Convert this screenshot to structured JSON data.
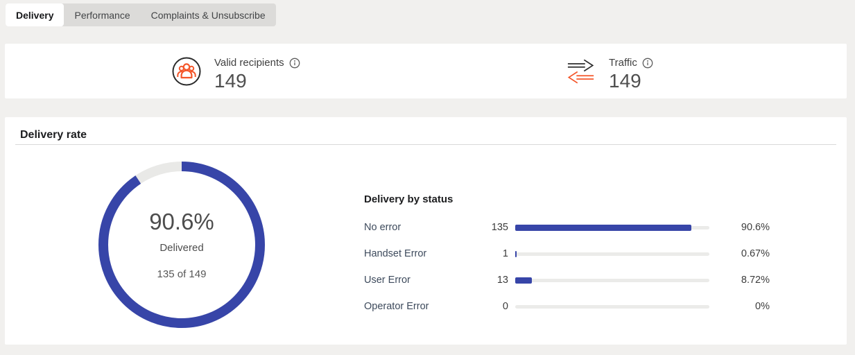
{
  "tabs": {
    "items": [
      {
        "label": "Delivery",
        "active": true
      },
      {
        "label": "Performance",
        "active": false
      },
      {
        "label": "Complaints & Unsubscribe",
        "active": false
      }
    ]
  },
  "stats": {
    "valid_recipients": {
      "label": "Valid recipients",
      "value": "149",
      "icon": "people-icon",
      "info_icon": "info-icon"
    },
    "traffic": {
      "label": "Traffic",
      "value": "149",
      "icon": "traffic-arrows-icon",
      "info_icon": "info-icon"
    }
  },
  "delivery_rate": {
    "title": "Delivery rate",
    "donut": {
      "percent_label": "90.6%",
      "percent_value": 90.6,
      "caption": "Delivered",
      "detail": "135 of 149"
    }
  },
  "delivery_by_status": {
    "title": "Delivery by status",
    "rows": [
      {
        "label": "No error",
        "count": "135",
        "percent_label": "90.6%",
        "percent_value": 90.6
      },
      {
        "label": "Handset Error",
        "count": "1",
        "percent_label": "0.67%",
        "percent_value": 0.67
      },
      {
        "label": "User Error",
        "count": "13",
        "percent_label": "8.72%",
        "percent_value": 8.72
      },
      {
        "label": "Operator Error",
        "count": "0",
        "percent_label": "0%",
        "percent_value": 0
      }
    ]
  },
  "colors": {
    "accent_indigo": "#3745a8",
    "accent_orange": "#f4562a",
    "bar_track": "#ebebe9",
    "donut_remainder": "#e9e9e7",
    "page_background": "#f1f0ee",
    "tab_strip": "#dcdbd9"
  },
  "chart_data": [
    {
      "type": "pie",
      "title": "Delivery rate",
      "labels": [
        "Delivered",
        "Remainder"
      ],
      "values": [
        90.6,
        9.4
      ],
      "center_label": "90.6%",
      "center_caption": "Delivered",
      "center_detail": "135 of 149",
      "style": "donut"
    },
    {
      "type": "bar",
      "title": "Delivery by status",
      "categories": [
        "No error",
        "Handset Error",
        "User Error",
        "Operator Error"
      ],
      "values": [
        135,
        1,
        13,
        0
      ],
      "percents": [
        90.6,
        0.67,
        8.72,
        0
      ],
      "total": 149,
      "orientation": "horizontal"
    }
  ]
}
